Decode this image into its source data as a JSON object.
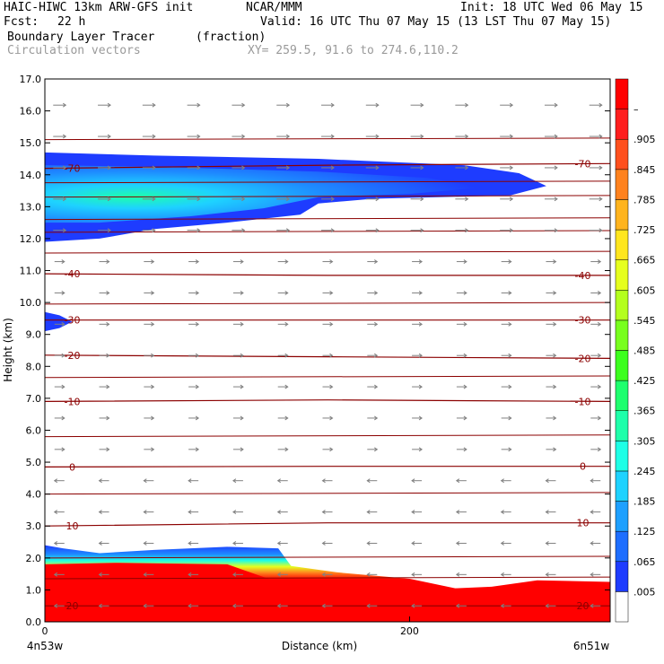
{
  "header": {
    "model": "HAIC-HIWC 13km ARW-GFS init",
    "org": "NCAR/MMM",
    "init": "Init: 18 UTC Wed 06 May 15",
    "fcst_label": "Fcst:",
    "fcst_value": "22 h",
    "valid": "Valid: 16 UTC Thu 07 May 15 (13 LST Thu 07 May 15)",
    "field": "Boundary Layer Tracer",
    "field_units": "(fraction)",
    "overlay": "Circulation vectors",
    "xy": "XY= 259.5, 91.6 to 274.6,110.2"
  },
  "chart_data": {
    "type": "heatmap",
    "ylabel": "Height (km)",
    "xlabel": "Distance (km)",
    "ylim": [
      0,
      17
    ],
    "xlim": [
      0,
      310
    ],
    "y_ticks": [
      "0.0",
      "1.0",
      "2.0",
      "3.0",
      "4.0",
      "5.0",
      "6.0",
      "7.0",
      "8.0",
      "9.0",
      "10.0",
      "11.0",
      "12.0",
      "13.0",
      "14.0",
      "15.0",
      "16.0",
      "17.0"
    ],
    "x_ticks": [
      {
        "value": 0,
        "label": "0"
      },
      {
        "value": 200,
        "label": "200"
      }
    ],
    "x_endpoints": {
      "left": "4n53w",
      "right": "6n51w"
    },
    "colorbar": {
      "labels": [
        ".005",
        ".065",
        ".125",
        ".185",
        ".245",
        ".305",
        ".365",
        ".425",
        ".485",
        ".545",
        ".605",
        ".665",
        ".725",
        ".785",
        ".845",
        ".905",
        "–"
      ],
      "colors": [
        "#ffffff",
        "#1e3cff",
        "#1e6eff",
        "#1ea0ff",
        "#1ed2ff",
        "#1effe6",
        "#1effaa",
        "#1eff6e",
        "#3cff1e",
        "#78ff1e",
        "#b4ff1e",
        "#e6ff1e",
        "#ffe61e",
        "#ffb41e",
        "#ff821e",
        "#ff501e",
        "#ff1e1e",
        "#ff0000"
      ]
    },
    "temperature_contours": [
      {
        "value": 20,
        "label": "20",
        "heights": [
          0.5,
          0.5,
          0.5
        ]
      },
      {
        "value": 10,
        "label": "10",
        "heights": [
          3.0,
          3.1,
          3.1
        ]
      },
      {
        "value": 0,
        "label": "0",
        "heights": [
          4.85,
          4.87,
          4.87
        ]
      },
      {
        "value": -10,
        "label": "-10",
        "heights": [
          6.9,
          6.95,
          6.9
        ]
      },
      {
        "value": -20,
        "label": "-20",
        "heights": [
          8.35,
          8.3,
          8.25
        ]
      },
      {
        "value": -30,
        "label": "-30",
        "heights": [
          9.45,
          9.45,
          9.45
        ]
      },
      {
        "value": -40,
        "label": "-40",
        "heights": [
          10.9,
          10.85,
          10.85
        ]
      },
      {
        "value": -70,
        "label": "-70",
        "heights": [
          14.2,
          14.3,
          14.35
        ]
      }
    ],
    "contour_levels_unlabeled": [
      1.35,
      2.0,
      4.0,
      5.8,
      7.65,
      9.95,
      11.55,
      12.2,
      12.6,
      13.3,
      13.75,
      15.1
    ],
    "tracer_regions": [
      {
        "name": "upper plume",
        "x": [
          0,
          280
        ],
        "y": [
          11.9,
          14.7
        ]
      },
      {
        "name": "mid patch",
        "x": [
          0,
          15
        ],
        "y": [
          9.1,
          9.7
        ]
      },
      {
        "name": "boundary layer",
        "x": [
          0,
          310
        ],
        "y": [
          0,
          2.4
        ]
      }
    ],
    "grid": false,
    "legend_position": "right colorbar"
  }
}
